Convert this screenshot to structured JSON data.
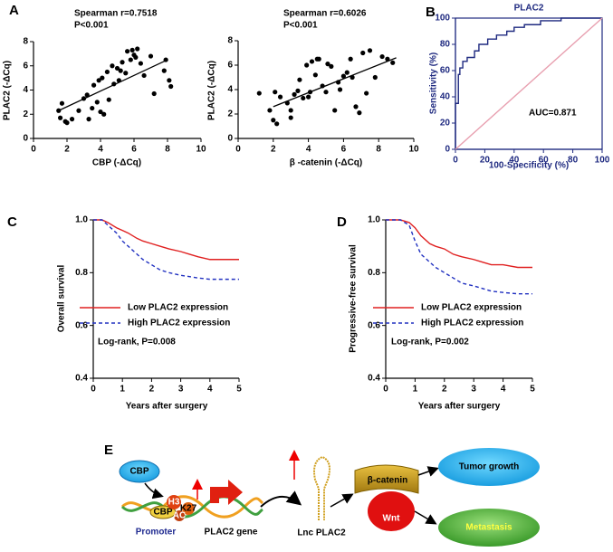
{
  "panel_labels": [
    "A",
    "B",
    "C",
    "D",
    "E"
  ],
  "chart_data": [
    {
      "type": "scatter",
      "xlabel": "CBP (-ΔCq)",
      "ylabel": "PLAC2 (-ΔCq)",
      "annotations": [
        "Spearman r=0.7518",
        "P<0.001"
      ],
      "xlim": [
        0,
        10
      ],
      "ylim": [
        0,
        8
      ],
      "xticks": [
        0,
        2,
        4,
        6,
        8,
        10
      ],
      "yticks": [
        0,
        2,
        4,
        6,
        8
      ],
      "color": "#000000",
      "x": [
        1.5,
        1.6,
        1.7,
        1.9,
        2.0,
        2.3,
        2.7,
        3.0,
        3.2,
        3.3,
        3.5,
        3.6,
        3.8,
        3.9,
        4.0,
        4.1,
        4.2,
        4.4,
        4.5,
        4.7,
        4.8,
        5.0,
        5.1,
        5.2,
        5.3,
        5.5,
        5.6,
        5.8,
        5.9,
        6.0,
        6.1,
        6.2,
        6.4,
        6.6,
        7.0,
        7.2,
        7.8,
        7.9,
        8.1,
        8.2
      ],
      "values": [
        2.3,
        1.7,
        2.9,
        1.4,
        1.3,
        1.6,
        2.3,
        3.3,
        3.6,
        1.6,
        2.5,
        4.4,
        3.0,
        4.8,
        2.2,
        5.0,
        2.0,
        5.5,
        3.2,
        6.0,
        4.5,
        5.8,
        4.8,
        5.6,
        6.3,
        5.4,
        7.2,
        6.5,
        7.3,
        6.9,
        6.7,
        7.4,
        6.2,
        5.2,
        6.8,
        3.7,
        5.6,
        6.5,
        4.8,
        4.3
      ],
      "fit_line": {
        "x": [
          1.5,
          8
        ],
        "y": [
          2.3,
          6.5
        ]
      }
    },
    {
      "type": "scatter",
      "xlabel": "β -catenin (-ΔCq)",
      "ylabel": "PLAC2 (-ΔCq)",
      "annotations": [
        "Spearman r=0.6026",
        "P<0.001"
      ],
      "xlim": [
        0,
        10
      ],
      "ylim": [
        0,
        8
      ],
      "xticks": [
        0,
        2,
        4,
        6,
        8,
        10
      ],
      "yticks": [
        0,
        2,
        4,
        6,
        8
      ],
      "color": "#000000",
      "x": [
        1.2,
        1.8,
        2.0,
        2.1,
        2.2,
        2.4,
        2.8,
        3.0,
        3.0,
        3.2,
        3.4,
        3.5,
        3.7,
        3.9,
        4.0,
        4.1,
        4.2,
        4.4,
        4.5,
        4.6,
        4.8,
        5.0,
        5.1,
        5.3,
        5.5,
        5.7,
        5.8,
        6.0,
        6.2,
        6.4,
        6.5,
        6.7,
        6.9,
        7.1,
        7.3,
        7.5,
        7.8,
        8.2,
        8.5,
        8.8
      ],
      "values": [
        3.7,
        2.3,
        1.5,
        3.8,
        1.2,
        3.4,
        2.9,
        1.7,
        2.3,
        3.6,
        3.9,
        4.8,
        3.3,
        6.0,
        3.4,
        3.8,
        6.3,
        5.2,
        6.5,
        6.5,
        4.3,
        3.8,
        6.1,
        5.9,
        2.3,
        4.6,
        4.0,
        5.1,
        5.4,
        6.5,
        5.0,
        2.6,
        2.1,
        7.0,
        3.7,
        7.2,
        5.0,
        6.7,
        6.5,
        6.2
      ],
      "fit_line": {
        "x": [
          2,
          9
        ],
        "y": [
          2.6,
          6.6
        ]
      }
    },
    {
      "type": "line",
      "title": "PLAC2",
      "xlabel": "100-Specificity (%)",
      "ylabel": "Sensitivity (%)",
      "annotations": [
        "AUC=0.871"
      ],
      "xlim": [
        0,
        100
      ],
      "ylim": [
        0,
        100
      ],
      "xticks": [
        0,
        20,
        40,
        60,
        80,
        100
      ],
      "yticks": [
        0,
        20,
        40,
        60,
        80,
        100
      ],
      "series": [
        {
          "color": "#1f2a80",
          "linestyle": "solid",
          "x": [
            0,
            0,
            2,
            2,
            3,
            3,
            5,
            5,
            8,
            8,
            13,
            13,
            16,
            16,
            22,
            22,
            28,
            28,
            35,
            35,
            40,
            40,
            47,
            47,
            58,
            58,
            72,
            72,
            100
          ],
          "values": [
            0,
            35,
            35,
            57,
            57,
            62,
            62,
            67,
            67,
            70,
            70,
            75,
            75,
            80,
            80,
            84,
            84,
            87,
            87,
            90,
            90,
            93,
            93,
            95,
            95,
            98,
            98,
            100,
            100
          ]
        },
        {
          "color": "#e8a0b0",
          "linestyle": "solid",
          "x": [
            0,
            100
          ],
          "values": [
            0,
            100
          ]
        }
      ]
    },
    {
      "type": "line",
      "xlabel": "Years after surgery",
      "ylabel": "Overall survival",
      "annotations": [
        "Log-rank, P=0.008"
      ],
      "xlim": [
        0,
        5
      ],
      "ylim": [
        0.4,
        1
      ],
      "xticks": [
        0,
        1,
        2,
        3,
        4,
        5
      ],
      "yticks": [
        0.4,
        0.6,
        0.8,
        {
          "value": 1,
          "label": "1.0"
        }
      ],
      "series": [
        {
          "name": "Low PLAC2 expression",
          "color": "#e02020",
          "linestyle": "solid",
          "x": [
            0,
            0.3,
            0.5,
            0.8,
            1.0,
            1.2,
            1.5,
            1.7,
            2.0,
            2.3,
            2.6,
            3.0,
            3.3,
            3.6,
            4.0,
            4.5,
            5.0
          ],
          "values": [
            1,
            1,
            0.99,
            0.97,
            0.96,
            0.95,
            0.93,
            0.92,
            0.91,
            0.9,
            0.89,
            0.88,
            0.87,
            0.86,
            0.85,
            0.85,
            0.85
          ]
        },
        {
          "name": "High PLAC2 expression",
          "color": "#2030c0",
          "linestyle": "dashed",
          "x": [
            0,
            0.3,
            0.5,
            0.8,
            1.0,
            1.2,
            1.5,
            1.7,
            2.0,
            2.3,
            2.6,
            3.0,
            3.3,
            3.6,
            4.0,
            4.5,
            5.0
          ],
          "values": [
            1,
            1,
            0.98,
            0.95,
            0.92,
            0.9,
            0.87,
            0.85,
            0.83,
            0.81,
            0.8,
            0.79,
            0.785,
            0.78,
            0.775,
            0.775,
            0.775
          ]
        }
      ]
    },
    {
      "type": "line",
      "xlabel": "Years after surgery",
      "ylabel": "Progressive-free survival",
      "annotations": [
        "Log-rank, P=0.002"
      ],
      "xlim": [
        0,
        5
      ],
      "ylim": [
        0.4,
        1
      ],
      "xticks": [
        0,
        1,
        2,
        3,
        4,
        5
      ],
      "yticks": [
        0.4,
        0.6,
        0.8,
        {
          "value": 1,
          "label": "1.0"
        }
      ],
      "series": [
        {
          "name": "Low PLAC2 expression",
          "color": "#e02020",
          "linestyle": "solid",
          "x": [
            0,
            0.3,
            0.5,
            0.8,
            1.0,
            1.2,
            1.5,
            1.7,
            2.0,
            2.3,
            2.6,
            3.0,
            3.3,
            3.6,
            4.0,
            4.5,
            5.0
          ],
          "values": [
            1,
            1,
            1,
            0.99,
            0.97,
            0.94,
            0.91,
            0.9,
            0.89,
            0.87,
            0.86,
            0.85,
            0.84,
            0.83,
            0.83,
            0.82,
            0.82
          ]
        },
        {
          "name": "High PLAC2 expression",
          "color": "#2030c0",
          "linestyle": "dashed",
          "x": [
            0,
            0.3,
            0.5,
            0.8,
            1.0,
            1.2,
            1.5,
            1.7,
            2.0,
            2.3,
            2.6,
            3.0,
            3.3,
            3.6,
            4.0,
            4.5,
            5.0
          ],
          "values": [
            1,
            1,
            1,
            0.98,
            0.92,
            0.87,
            0.84,
            0.82,
            0.8,
            0.78,
            0.76,
            0.75,
            0.74,
            0.73,
            0.725,
            0.72,
            0.72
          ]
        }
      ]
    }
  ],
  "diagram": {
    "cbp": "CBP",
    "h3": "H3",
    "k27": "K27",
    "ac": "AC",
    "cbp_small": "CBP",
    "promoter": "Promoter",
    "gene": "PLAC2 gene",
    "lnc": "Lnc PLAC2",
    "catenin": "β-catenin",
    "wnt": "Wnt",
    "tumor": "Tumor growth",
    "metastasis": "Metastasis"
  }
}
